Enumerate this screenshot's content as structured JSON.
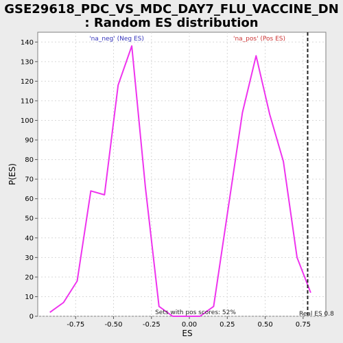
{
  "chart_data": {
    "type": "line",
    "title_line1": "GSE29618_PDC_VS_MDC_DAY7_FLU_VACCINE_DN",
    "title_line2": ": Random ES distribution",
    "xlabel": "ES",
    "ylabel": "P(ES)",
    "xlim": [
      -1.0,
      0.9
    ],
    "ylim": [
      0,
      145
    ],
    "x_ticks": [
      -0.75,
      -0.5,
      -0.25,
      0.0,
      0.25,
      0.5,
      0.75
    ],
    "x_tick_labels": [
      "-0.75",
      "-0.50",
      "-0.25",
      "0.00",
      "0.25",
      "0.50",
      "0.75"
    ],
    "y_ticks": [
      0,
      10,
      20,
      30,
      40,
      50,
      60,
      70,
      80,
      90,
      100,
      110,
      120,
      130,
      140
    ],
    "y_tick_labels": [
      "0",
      "10",
      "20",
      "30",
      "40",
      "50",
      "60",
      "70",
      "80",
      "90",
      "100",
      "110",
      "120",
      "130",
      "140"
    ],
    "grid": true,
    "series": [
      {
        "color": "#ee33ee",
        "x": [
          -0.92,
          -0.83,
          -0.74,
          -0.65,
          -0.56,
          -0.47,
          -0.38,
          -0.29,
          -0.2,
          -0.11,
          -0.02,
          0.07,
          0.16,
          0.25,
          0.35,
          0.44,
          0.53,
          0.62,
          0.71,
          0.8
        ],
        "y": [
          2,
          7,
          18,
          64,
          62,
          118,
          138,
          66,
          5,
          0,
          0,
          0,
          5,
          52,
          104,
          133,
          103,
          79,
          30,
          12
        ]
      }
    ],
    "real_es": 0.78,
    "annotations": {
      "neg_label": "'na_neg' (Neg ES)",
      "pos_label": "'na_pos' (Pos ES)",
      "pos_scores": "Sets with pos scores: 52%",
      "real_es_label": "Real ES 0.8"
    },
    "colors": {
      "neg_label": "#3333bb",
      "pos_label": "#cc3333",
      "line": "#ee33ee",
      "grid": "#d8d8d8",
      "plot_bg": "#ffffff",
      "page_bg": "#ececec"
    }
  }
}
